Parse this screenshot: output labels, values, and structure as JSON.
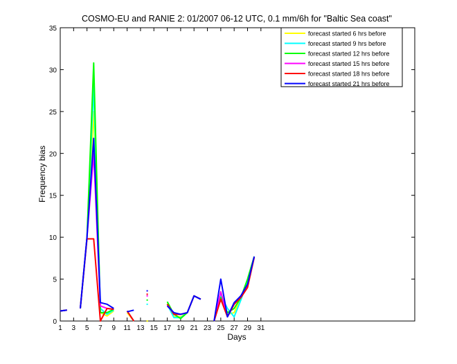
{
  "chart_data": {
    "type": "line",
    "title": "COSMO-EU and RANIE 2: 01/2007 06-12 UTC, 0.1 mm/6h for \"Baltic Sea coast\"",
    "xlabel": "Days",
    "ylabel": "Frequency bias",
    "xlim": [
      1,
      54
    ],
    "ylim": [
      0,
      35
    ],
    "xticks": [
      1,
      3,
      5,
      7,
      9,
      11,
      13,
      15,
      17,
      19,
      21,
      23,
      25,
      27,
      29,
      31
    ],
    "yticks": [
      0,
      5,
      10,
      15,
      20,
      25,
      30,
      35
    ],
    "grid": false,
    "legend_position": "top-right",
    "x": [
      1,
      2,
      3,
      4,
      5,
      6,
      7,
      8,
      9,
      10,
      11,
      12,
      13,
      14,
      15,
      16,
      17,
      18,
      19,
      20,
      21,
      22,
      23,
      24,
      25,
      26,
      27,
      28,
      29,
      30
    ],
    "series": [
      {
        "name": "forecast started 6 hrs before",
        "color": "#ffff00",
        "values": [
          1.2,
          1.3,
          null,
          1.5,
          10,
          25,
          1.0,
          0.6,
          1.2,
          null,
          1.0,
          0,
          null,
          0,
          null,
          null,
          2.1,
          0.5,
          0.5,
          1.0,
          3.0,
          2.6,
          null,
          0,
          3.5,
          0.8,
          1.0,
          2.8,
          4.5,
          7.6
        ]
      },
      {
        "name": "forecast started 9 hrs before",
        "color": "#00ffff",
        "values": [
          1.2,
          1.3,
          null,
          1.5,
          10,
          28,
          1.5,
          0.8,
          1.3,
          null,
          1.2,
          0,
          null,
          2.0,
          null,
          null,
          2.0,
          0.4,
          0.4,
          1.0,
          3.0,
          2.6,
          null,
          0,
          3.0,
          1.5,
          0.5,
          2.5,
          4.8,
          7.6
        ]
      },
      {
        "name": "forecast started 12 hrs before",
        "color": "#00ff00",
        "values": [
          1.2,
          1.3,
          null,
          1.5,
          10,
          30.8,
          1.0,
          1.0,
          1.4,
          null,
          1.2,
          0,
          null,
          2.5,
          null,
          null,
          2.3,
          0.8,
          0.3,
          1.0,
          3.0,
          2.6,
          null,
          0,
          2.8,
          1.0,
          1.5,
          2.8,
          5.0,
          7.7
        ]
      },
      {
        "name": "forecast started 15 hrs before",
        "color": "#ff00ff",
        "values": [
          1.2,
          1.3,
          null,
          1.5,
          10,
          20,
          1.8,
          1.5,
          1.4,
          null,
          1.2,
          0,
          null,
          3.0,
          null,
          null,
          2.0,
          0.8,
          0.8,
          1.0,
          3.0,
          2.6,
          null,
          0,
          3.5,
          0.5,
          2.0,
          3.0,
          4.2,
          7.6
        ]
      },
      {
        "name": "forecast started 18 hrs before",
        "color": "#ff0000",
        "values": [
          1.2,
          1.3,
          null,
          1.5,
          9.8,
          9.8,
          0,
          1.5,
          1.4,
          null,
          1.2,
          0,
          null,
          3.2,
          null,
          null,
          2.0,
          0.8,
          0.8,
          1.0,
          3.0,
          2.6,
          null,
          0,
          2.6,
          0.5,
          2.0,
          2.8,
          4.0,
          7.6
        ]
      },
      {
        "name": "forecast started 21 hrs before",
        "color": "#0000ff",
        "values": [
          1.2,
          1.3,
          null,
          1.5,
          10,
          21.8,
          2.2,
          2.0,
          1.5,
          null,
          1.1,
          1.3,
          null,
          3.6,
          null,
          null,
          1.8,
          1.0,
          0.8,
          1.0,
          3.0,
          2.6,
          null,
          0,
          5.0,
          0.5,
          2.2,
          3.0,
          4.4,
          7.7
        ]
      }
    ]
  }
}
